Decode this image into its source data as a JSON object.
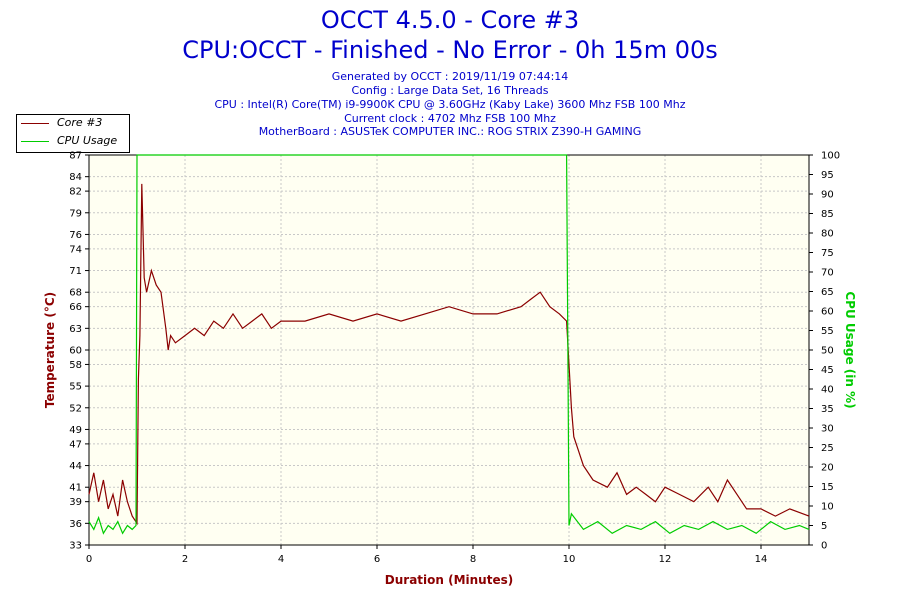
{
  "header": {
    "title": "OCCT 4.5.0 - Core #3",
    "subtitle": "CPU:OCCT - Finished - No Error - 0h 15m 00s",
    "info_lines": [
      "Generated by OCCT : 2019/11/19 07:44:14",
      "Config : Large Data Set, 16 Threads",
      "CPU : Intel(R) Core(TM) i9-9900K CPU @ 3.60GHz (Kaby Lake) 3600 Mhz FSB 100 Mhz",
      "Current clock : 4702 Mhz FSB 100 Mhz",
      "MotherBoard : ASUSTeK COMPUTER INC.: ROG STRIX Z390-H GAMING"
    ]
  },
  "legend": [
    {
      "label": "Core #3",
      "color": "#8b0000"
    },
    {
      "label": "CPU Usage",
      "color": "#00cc00"
    }
  ],
  "chart_data": {
    "type": "line",
    "title": "OCCT 4.5.0 - Core #3",
    "xlabel": "Duration (Minutes)",
    "ylabel": "Temperature (°C)",
    "y2label": "CPU Usage (in %)",
    "xlim": [
      0,
      15
    ],
    "ylim": [
      33,
      87
    ],
    "y2lim": [
      0,
      100
    ],
    "x_ticks": [
      0,
      2,
      4,
      6,
      8,
      10,
      12,
      14
    ],
    "y_ticks": [
      33,
      36,
      39,
      41,
      44,
      47,
      49,
      52,
      55,
      58,
      60,
      63,
      66,
      68,
      71,
      74,
      76,
      79,
      82,
      84,
      87
    ],
    "y2_ticks": [
      0,
      5,
      10,
      15,
      20,
      25,
      30,
      35,
      40,
      45,
      50,
      55,
      60,
      65,
      70,
      75,
      80,
      85,
      90,
      95,
      100
    ],
    "grid": true,
    "legend_position": "top-left",
    "series": [
      {
        "name": "Core #3",
        "axis": "left",
        "color": "#8b0000",
        "x": [
          0,
          0.1,
          0.2,
          0.3,
          0.4,
          0.5,
          0.6,
          0.7,
          0.8,
          0.9,
          1.0,
          1.03,
          1.06,
          1.1,
          1.15,
          1.2,
          1.3,
          1.4,
          1.5,
          1.6,
          1.65,
          1.7,
          1.8,
          2.0,
          2.2,
          2.4,
          2.6,
          2.8,
          3.0,
          3.2,
          3.4,
          3.6,
          3.8,
          4.0,
          4.5,
          5.0,
          5.5,
          6.0,
          6.5,
          7.0,
          7.5,
          8.0,
          8.5,
          9.0,
          9.2,
          9.4,
          9.6,
          9.8,
          9.95,
          10.0,
          10.05,
          10.1,
          10.2,
          10.3,
          10.5,
          10.8,
          11.0,
          11.2,
          11.4,
          11.6,
          11.8,
          12.0,
          12.3,
          12.6,
          12.9,
          13.1,
          13.3,
          13.5,
          13.7,
          14.0,
          14.3,
          14.6,
          15.0
        ],
        "values": [
          40,
          43,
          39,
          42,
          38,
          40,
          37,
          42,
          39,
          37,
          36,
          56,
          62,
          83,
          70,
          68,
          71,
          69,
          68,
          63,
          60,
          62,
          61,
          62,
          63,
          62,
          64,
          63,
          65,
          63,
          64,
          65,
          63,
          64,
          64,
          65,
          64,
          65,
          64,
          65,
          66,
          65,
          65,
          66,
          67,
          68,
          66,
          65,
          64,
          58,
          52,
          48,
          46,
          44,
          42,
          41,
          43,
          40,
          41,
          40,
          39,
          41,
          40,
          39,
          41,
          39,
          42,
          40,
          38,
          38,
          37,
          38,
          37
        ]
      },
      {
        "name": "CPU Usage",
        "axis": "right",
        "color": "#00cc00",
        "x": [
          0,
          0.1,
          0.2,
          0.3,
          0.4,
          0.5,
          0.6,
          0.7,
          0.8,
          0.9,
          0.98,
          1.0,
          9.95,
          10.0,
          10.05,
          10.3,
          10.6,
          10.9,
          11.2,
          11.5,
          11.8,
          12.1,
          12.4,
          12.7,
          13.0,
          13.3,
          13.6,
          13.9,
          14.2,
          14.5,
          14.8,
          15.0
        ],
        "values": [
          6,
          4,
          7,
          3,
          5,
          4,
          6,
          3,
          5,
          4,
          5,
          100,
          100,
          5,
          8,
          4,
          6,
          3,
          5,
          4,
          6,
          3,
          5,
          4,
          6,
          4,
          5,
          3,
          6,
          4,
          5,
          4
        ]
      }
    ]
  }
}
